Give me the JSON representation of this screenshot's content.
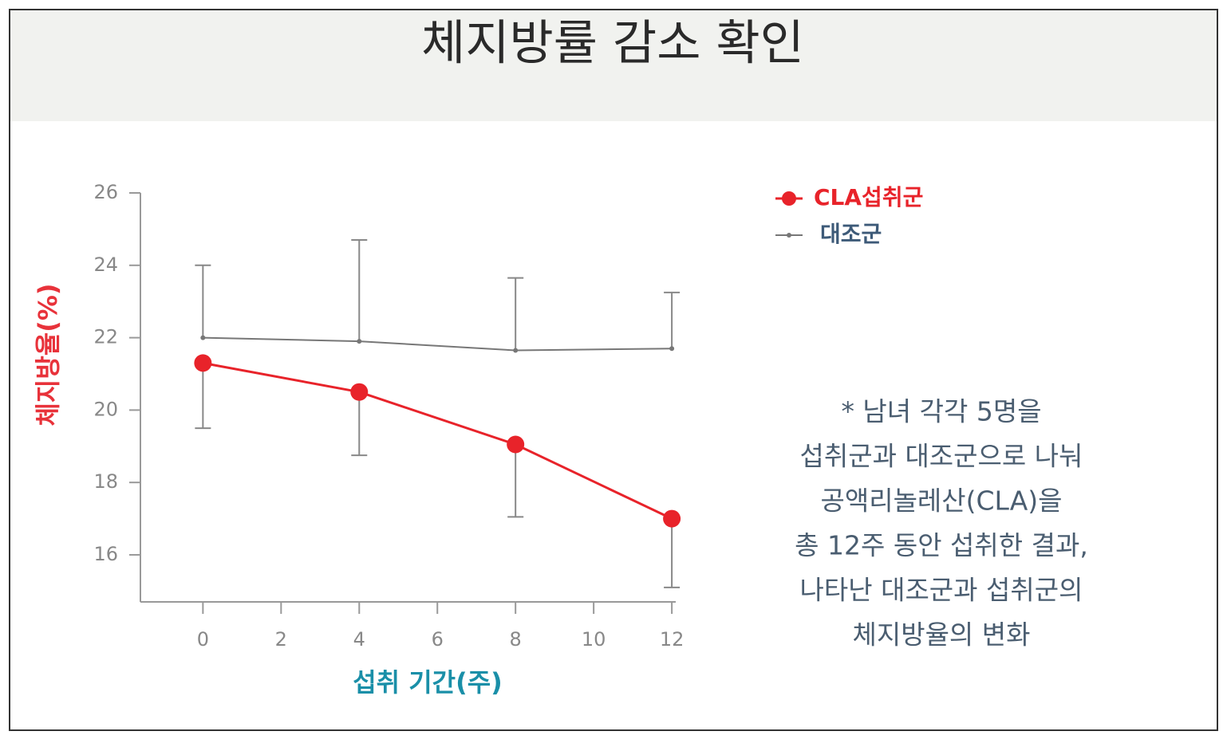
{
  "chart_data": {
    "type": "line",
    "title": "체지방률 감소 확인",
    "x_label": "섭취 기간(주)",
    "y_label": "체지방율(%)",
    "x": [
      0,
      4,
      8,
      12
    ],
    "xlim": [
      -1.6,
      12.1
    ],
    "xticks": [
      0,
      2,
      4,
      6,
      8,
      10,
      12
    ],
    "ylim": [
      14.7,
      26
    ],
    "yticks": [
      16,
      18,
      20,
      22,
      24,
      26
    ],
    "series": [
      {
        "name": "CLA섭취군",
        "color": "#e8232a",
        "values": [
          21.3,
          20.5,
          19.05,
          17.0
        ],
        "errors": [
          1.8,
          1.75,
          2.0,
          1.9
        ],
        "error_direction": "down"
      },
      {
        "name": "대조군",
        "color": "#777777",
        "values": [
          22.0,
          21.9,
          21.65,
          21.7
        ],
        "errors": [
          2.0,
          2.8,
          2.0,
          1.55
        ],
        "error_direction": "up"
      }
    ],
    "note": [
      "* 남녀 각각 5명을",
      "섭취군과 대조군으로 나눠",
      "공액리놀레산(CLA)을",
      "총 12주 동안 섭취한 결과,",
      "나타난 대조군과 섭취군의",
      "체지방율의 변화"
    ]
  }
}
